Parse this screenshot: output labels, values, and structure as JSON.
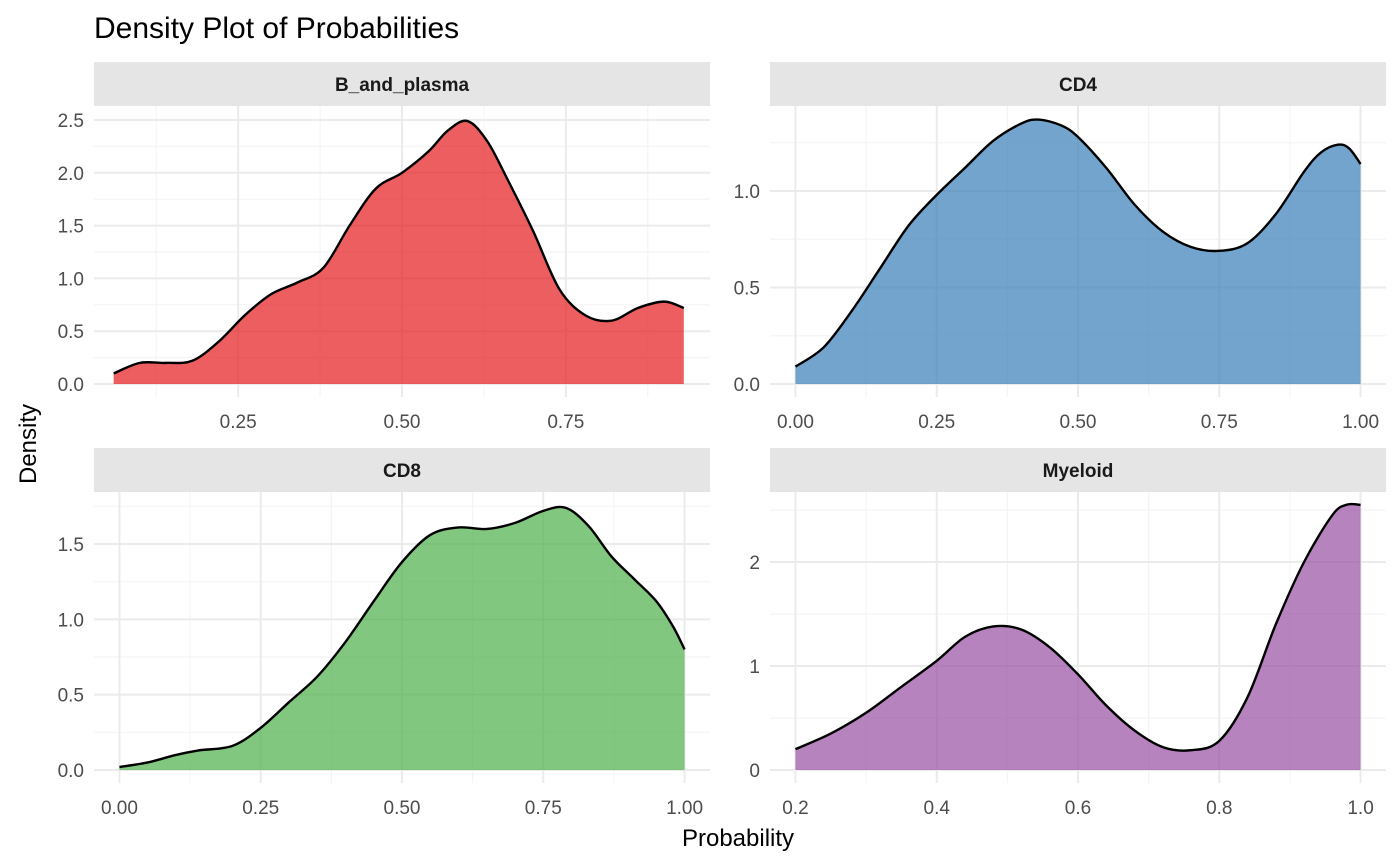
{
  "chart_data": {
    "type": "area",
    "title": "Density Plot of Probabilities",
    "xlabel": "Probability",
    "ylabel": "Density",
    "grid": true,
    "legend": "none",
    "facets": [
      {
        "name": "B_and_plasma",
        "color": "#e41a1c",
        "xlim": [
          0.03,
          0.97
        ],
        "ylim": [
          0,
          2.5
        ],
        "xticks": [
          0.25,
          0.5,
          0.75
        ],
        "xtick_labels": [
          "0.25",
          "0.50",
          "0.75"
        ],
        "yticks": [
          0.0,
          0.5,
          1.0,
          1.5,
          2.0,
          2.5
        ],
        "ytick_labels": [
          "0.0",
          "0.5",
          "1.0",
          "1.5",
          "2.0",
          "2.5"
        ],
        "x": [
          0.06,
          0.1,
          0.14,
          0.18,
          0.22,
          0.26,
          0.3,
          0.34,
          0.38,
          0.42,
          0.46,
          0.5,
          0.54,
          0.57,
          0.6,
          0.63,
          0.66,
          0.7,
          0.74,
          0.78,
          0.82,
          0.86,
          0.9,
          0.93
        ],
        "y": [
          0.1,
          0.2,
          0.2,
          0.22,
          0.4,
          0.65,
          0.85,
          0.96,
          1.1,
          1.5,
          1.85,
          2.0,
          2.2,
          2.4,
          2.49,
          2.3,
          1.95,
          1.45,
          0.9,
          0.65,
          0.6,
          0.72,
          0.78,
          0.72
        ]
      },
      {
        "name": "CD4",
        "color": "#377eb8",
        "xlim": [
          -0.045,
          1.045
        ],
        "ylim": [
          0,
          1.4
        ],
        "xticks": [
          0.0,
          0.25,
          0.5,
          0.75,
          1.0
        ],
        "xtick_labels": [
          "0.00",
          "0.25",
          "0.50",
          "0.75",
          "1.00"
        ],
        "yticks": [
          0.0,
          0.5,
          1.0
        ],
        "ytick_labels": [
          "0.0",
          "0.5",
          "1.0"
        ],
        "x": [
          0.0,
          0.05,
          0.1,
          0.15,
          0.2,
          0.25,
          0.3,
          0.35,
          0.4,
          0.43,
          0.47,
          0.5,
          0.55,
          0.6,
          0.65,
          0.7,
          0.75,
          0.8,
          0.85,
          0.9,
          0.93,
          0.96,
          0.98,
          1.0
        ],
        "y": [
          0.09,
          0.19,
          0.38,
          0.6,
          0.82,
          0.98,
          1.12,
          1.26,
          1.35,
          1.37,
          1.34,
          1.28,
          1.12,
          0.93,
          0.79,
          0.71,
          0.69,
          0.73,
          0.88,
          1.1,
          1.2,
          1.24,
          1.22,
          1.14
        ]
      },
      {
        "name": "CD8",
        "color": "#4daf4a",
        "xlim": [
          -0.045,
          1.045
        ],
        "ylim": [
          0,
          1.75
        ],
        "xticks": [
          0.0,
          0.25,
          0.5,
          0.75,
          1.0
        ],
        "xtick_labels": [
          "0.00",
          "0.25",
          "0.50",
          "0.75",
          "1.00"
        ],
        "yticks": [
          0.0,
          0.5,
          1.0,
          1.5
        ],
        "ytick_labels": [
          "0.0",
          "0.5",
          "1.0",
          "1.5"
        ],
        "x": [
          0.0,
          0.05,
          0.1,
          0.14,
          0.2,
          0.25,
          0.3,
          0.35,
          0.4,
          0.45,
          0.5,
          0.55,
          0.6,
          0.65,
          0.7,
          0.75,
          0.79,
          0.83,
          0.87,
          0.91,
          0.95,
          0.98,
          1.0
        ],
        "y": [
          0.02,
          0.05,
          0.1,
          0.13,
          0.16,
          0.28,
          0.45,
          0.62,
          0.85,
          1.12,
          1.38,
          1.56,
          1.61,
          1.6,
          1.64,
          1.72,
          1.74,
          1.62,
          1.42,
          1.27,
          1.12,
          0.95,
          0.8
        ]
      },
      {
        "name": "Myeloid",
        "color": "#984ea3",
        "xlim": [
          0.164,
          1.036
        ],
        "ylim": [
          0,
          2.55
        ],
        "xticks": [
          0.2,
          0.4,
          0.6,
          0.8,
          1.0
        ],
        "xtick_labels": [
          "0.2",
          "0.4",
          "0.6",
          "0.8",
          "1.0"
        ],
        "yticks": [
          0,
          1,
          2
        ],
        "ytick_labels": [
          "0",
          "1",
          "2"
        ],
        "x": [
          0.2,
          0.25,
          0.3,
          0.35,
          0.4,
          0.44,
          0.48,
          0.52,
          0.56,
          0.6,
          0.64,
          0.68,
          0.72,
          0.76,
          0.8,
          0.84,
          0.88,
          0.92,
          0.96,
          0.98,
          1.0
        ],
        "y": [
          0.2,
          0.35,
          0.55,
          0.8,
          1.05,
          1.28,
          1.38,
          1.35,
          1.18,
          0.92,
          0.62,
          0.38,
          0.22,
          0.19,
          0.28,
          0.7,
          1.4,
          2.0,
          2.45,
          2.55,
          2.55
        ]
      }
    ]
  }
}
